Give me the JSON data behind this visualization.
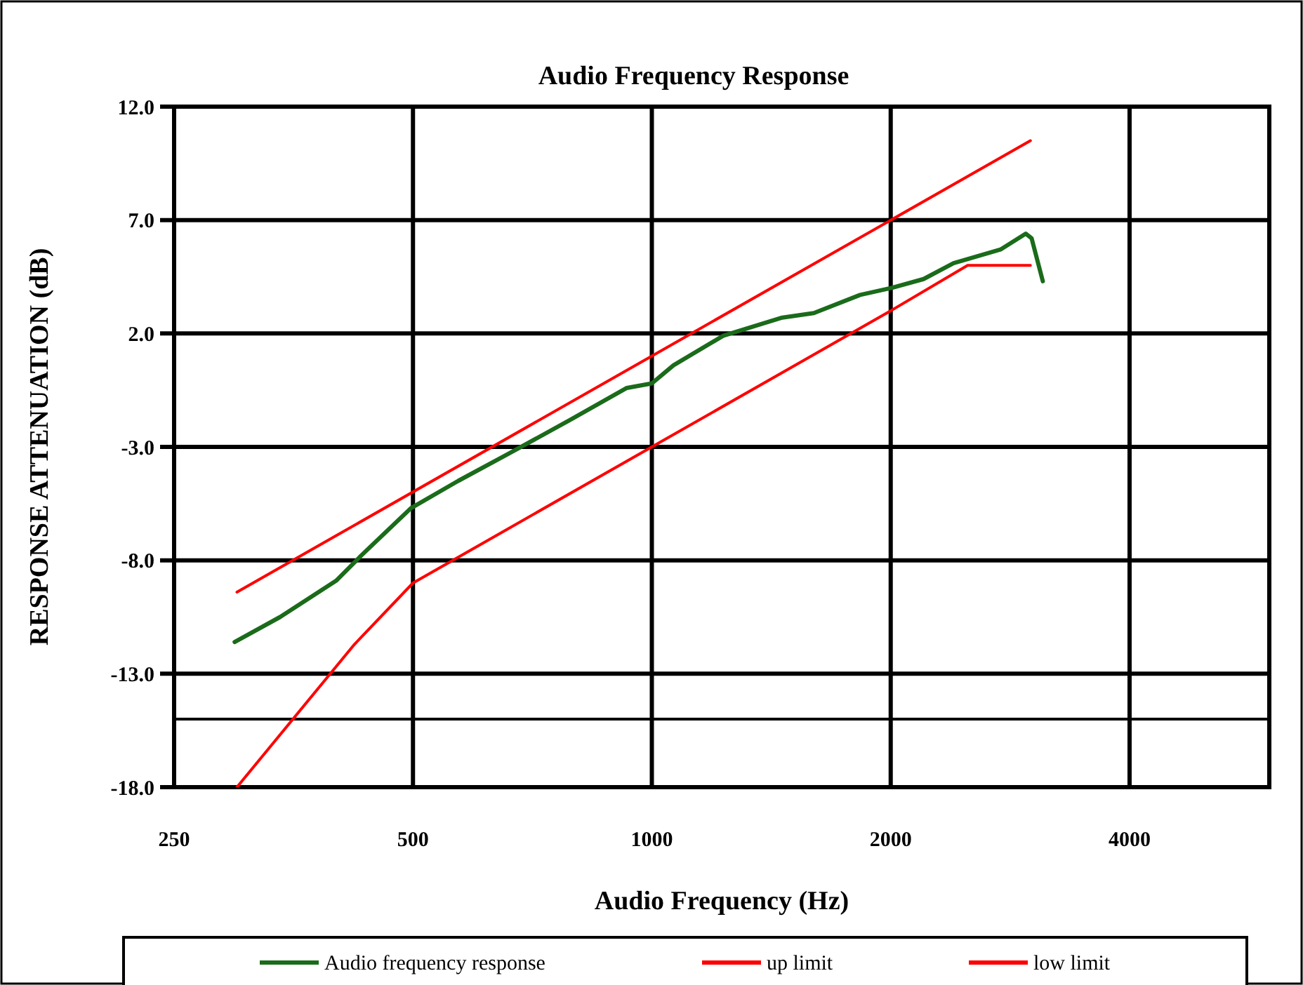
{
  "chart_data": {
    "type": "line",
    "title": "Audio Frequency Response",
    "xlabel": "Audio Frequency (Hz)",
    "ylabel": "RESPONSE ATTENUATION (dB)",
    "log": "x",
    "xlim": [
      250,
      6000
    ],
    "xticks": [
      250,
      500,
      1000,
      2000,
      4000
    ],
    "ylim": [
      -18,
      12
    ],
    "yticks": [
      {
        "value": -18,
        "label": "-18.0"
      },
      {
        "value": -13,
        "label": "-13.0"
      },
      {
        "value": -8,
        "label": "-8.0"
      },
      {
        "value": -3,
        "label": "-3.0"
      },
      {
        "value": 2,
        "label": "2.0"
      },
      {
        "value": 7,
        "label": "7.0"
      },
      {
        "value": 12,
        "label": "12.0"
      }
    ],
    "grid": true,
    "legend": "bottom",
    "marker": "none",
    "ref_lines": [
      {
        "axis": "y",
        "value": -15,
        "label": null,
        "color": "#000000"
      }
    ],
    "series": [
      {
        "name": "Audio frequency response",
        "color": "#1a6b1a",
        "x": [
          298,
          340,
          400,
          430,
          497,
          570,
          660,
          790,
          930,
          1000,
          1065,
          1230,
          1460,
          1600,
          1830,
          2000,
          2200,
          2400,
          2750,
          2960,
          3010,
          3110
        ],
        "values": [
          -11.6,
          -10.5,
          -8.9,
          -7.8,
          -5.7,
          -4.5,
          -3.3,
          -1.8,
          -0.4,
          -0.2,
          0.6,
          1.9,
          2.7,
          2.9,
          3.7,
          4.0,
          4.4,
          5.1,
          5.7,
          6.4,
          6.2,
          4.3
        ]
      },
      {
        "name": "up limit",
        "color": "#ff0000",
        "x": [
          300,
          3000
        ],
        "values": [
          -9.4,
          10.5
        ]
      },
      {
        "name": "low limit",
        "color": "#ff0000",
        "x": [
          300,
          422,
          500,
          1000,
          2000,
          2500,
          3000
        ],
        "values": [
          -18,
          -11.7,
          -9,
          -3,
          3,
          5,
          5
        ]
      }
    ]
  }
}
